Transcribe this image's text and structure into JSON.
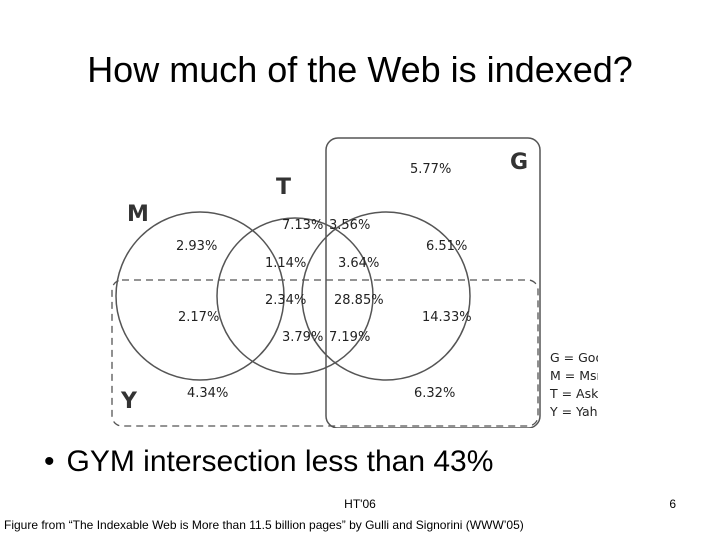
{
  "slide": {
    "title": "How much of the Web is indexed?",
    "bullet": "GYM intersection less than 43%",
    "footer_center": "HT'06",
    "page_number": "6",
    "caption": "Figure from “The Indexable Web is More than 11.5 billion pages” by Gulli and Signorini (WWW’05)"
  },
  "diagram": {
    "set_labels": {
      "g": "G",
      "t": "T",
      "m": "M",
      "y": "Y"
    },
    "regions": {
      "g_only": "5.77%",
      "mt_top": "7.13%",
      "tg_top": "3.56%",
      "m_only": "2.93%",
      "gm_only": "6.51%",
      "mt_mid": "1.14%",
      "mtg_mid": "3.64%",
      "my_t": "2.34%",
      "center": "28.85%",
      "gy_mid": "14.33%",
      "my_left": "2.17%",
      "ty_bottom": "3.79%",
      "tgy_bottom": "7.19%",
      "y_only": "4.34%",
      "gy_bottom": "6.32%"
    },
    "legend": [
      "G = Google",
      "M = Msn Beta",
      "T = Ask/Teoma",
      "Y = Yahoo!"
    ]
  }
}
